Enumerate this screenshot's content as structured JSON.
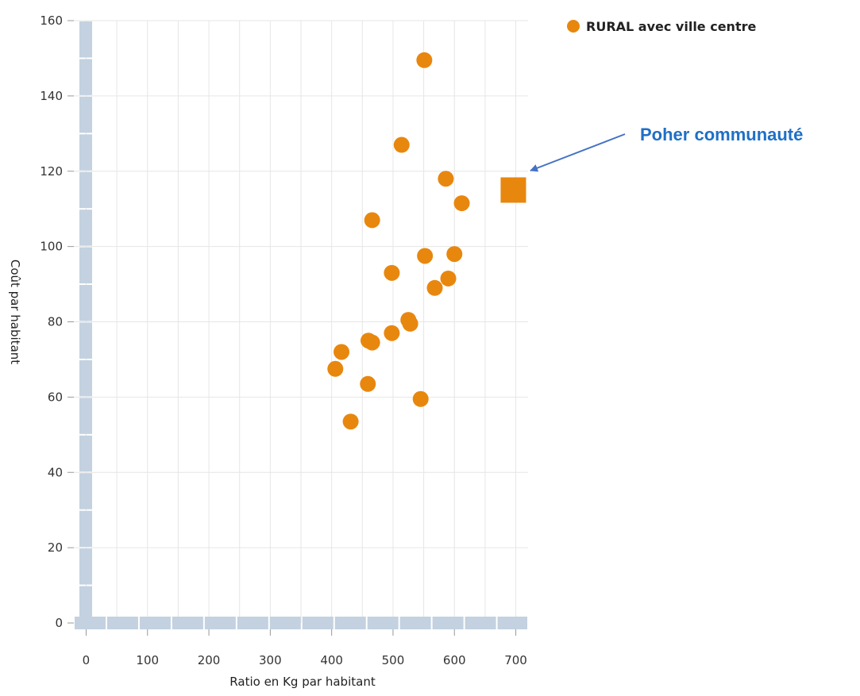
{
  "chart_data": {
    "type": "scatter",
    "xlabel": "Ratio en Kg par habitant",
    "ylabel": "Coût par habitant",
    "xlim": [
      -20,
      720
    ],
    "ylim": [
      0,
      160
    ],
    "x_ticks": [
      "0",
      "100",
      "200",
      "300",
      "400",
      "500",
      "600",
      "700"
    ],
    "y_ticks": [
      "0",
      "20",
      "40",
      "60",
      "80",
      "100",
      "120",
      "140",
      "160"
    ],
    "grid": true,
    "legend_position": "top-right",
    "series": [
      {
        "name": "RURAL avec ville centre",
        "marker": "circle",
        "color": "#E8870E",
        "points": [
          {
            "x": 551,
            "y": 149.5
          },
          {
            "x": 514,
            "y": 127
          },
          {
            "x": 586,
            "y": 118
          },
          {
            "x": 612,
            "y": 111.5
          },
          {
            "x": 466,
            "y": 107
          },
          {
            "x": 552,
            "y": 97.5
          },
          {
            "x": 600,
            "y": 98
          },
          {
            "x": 498,
            "y": 93
          },
          {
            "x": 590,
            "y": 91.5
          },
          {
            "x": 568,
            "y": 89
          },
          {
            "x": 525,
            "y": 80.5
          },
          {
            "x": 528,
            "y": 79.5
          },
          {
            "x": 498,
            "y": 77
          },
          {
            "x": 460,
            "y": 75
          },
          {
            "x": 466,
            "y": 74.5
          },
          {
            "x": 416,
            "y": 72
          },
          {
            "x": 406,
            "y": 67.5
          },
          {
            "x": 459,
            "y": 63.5
          },
          {
            "x": 545,
            "y": 59.5
          },
          {
            "x": 431,
            "y": 53.5
          }
        ]
      },
      {
        "name": "",
        "marker": "square",
        "color": "#E8870E",
        "points": [
          {
            "x": 696,
            "y": 115
          }
        ]
      }
    ],
    "annotation": {
      "text": "Poher communauté",
      "color": "#1F6FC5",
      "arrow_color": "#4472C4"
    },
    "axis_band_color": "#C3D1E0",
    "grid_color": "#E6E6E6"
  }
}
